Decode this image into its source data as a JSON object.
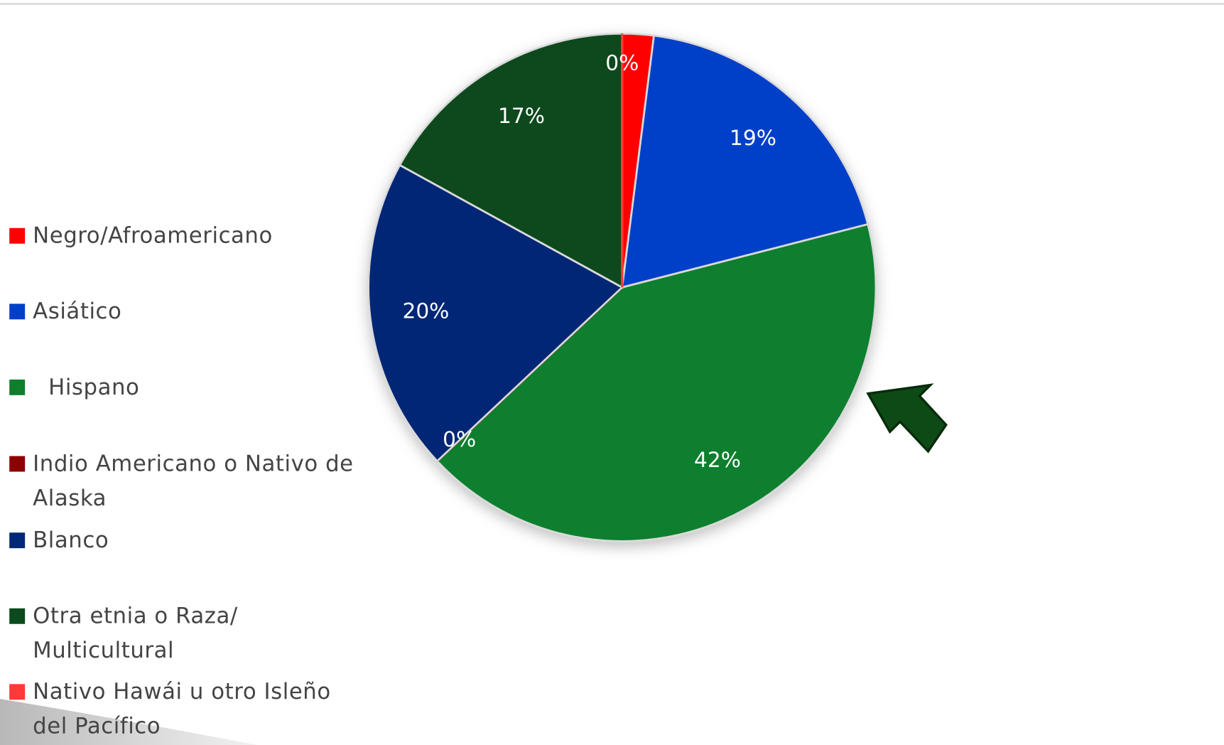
{
  "chart_data": {
    "type": "pie",
    "categories": [
      "Negro/Afroamericano",
      "Asiático",
      "Hispano",
      "Indio Americano o Nativo de Alaska",
      "Blanco",
      "Otra etnia o Raza/ Multicultural",
      "Nativo Hawái u otro Isleño del Pacífico"
    ],
    "values": [
      2,
      19,
      42,
      0,
      20,
      17,
      0
    ],
    "value_labels": [
      null,
      "19%",
      "42%",
      "0%",
      "20%",
      "17%",
      "0%"
    ],
    "colors": [
      "#ff0000",
      "#0040c8",
      "#0f7f2d",
      "#8b0000",
      "#002875",
      "#0a4a1c",
      "#ff3838"
    ],
    "legend": "left"
  }
}
